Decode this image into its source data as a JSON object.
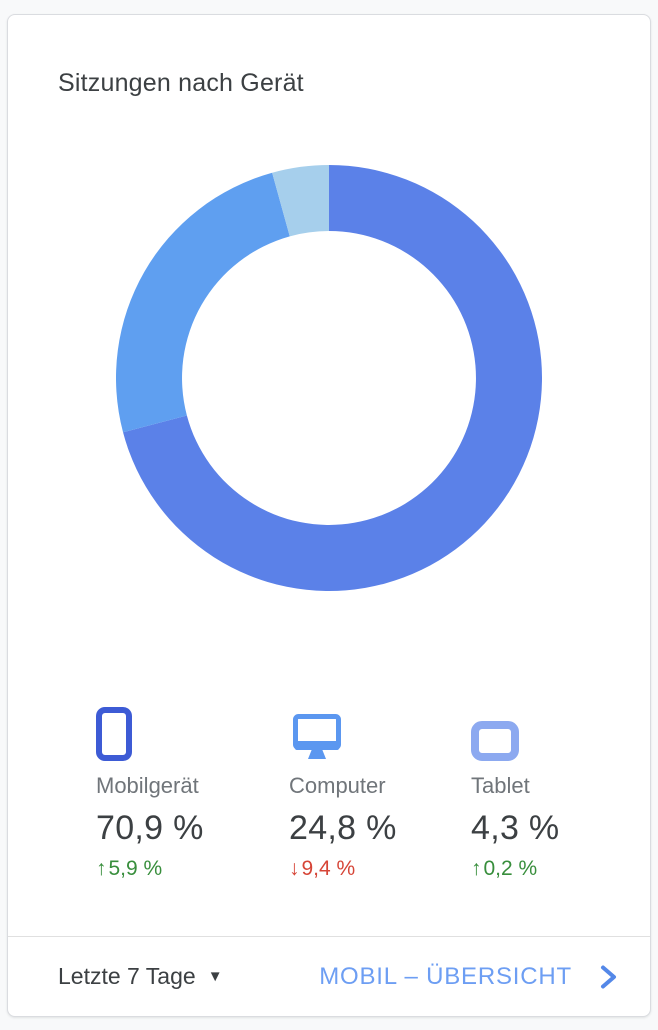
{
  "card": {
    "title": "Sitzungen nach Gerät"
  },
  "chart_data": {
    "type": "pie",
    "subtype": "donut",
    "title": "Sitzungen nach Gerät",
    "categories": [
      "Mobilgerät",
      "Computer",
      "Tablet"
    ],
    "values": [
      70.9,
      24.8,
      4.3
    ],
    "unit": "%",
    "colors": [
      "#5b81e8",
      "#5f9ff0",
      "#a6cfec"
    ],
    "start_angle_deg": 0,
    "direction": "clockwise",
    "inner_radius_ratio": 0.69,
    "legend_position": "bottom"
  },
  "legend": {
    "items": [
      {
        "icon": "smartphone-icon",
        "icon_color": "#3d5bd5",
        "label": "Mobilgerät",
        "value": "70,9 %",
        "arrow": "↑",
        "change": "5,9 %",
        "change_direction": "up",
        "change_color": "#388e3c"
      },
      {
        "icon": "desktop-icon",
        "icon_color": "#5b97f0",
        "label": "Computer",
        "value": "24,8 %",
        "arrow": "↓",
        "change": "9,4 %",
        "change_direction": "down",
        "change_color": "#d64537"
      },
      {
        "icon": "tablet-icon",
        "icon_color": "#8ca9f0",
        "label": "Tablet",
        "value": "4,3 %",
        "arrow": "↑",
        "change": "0,2 %",
        "change_direction": "up",
        "change_color": "#388e3c"
      }
    ]
  },
  "footer": {
    "date_range_label": "Letzte 7 Tage",
    "dropdown_caret": "▼",
    "link_label": "MOBIL – ÜBERSICHT",
    "link_color": "#6d9ef3",
    "chevron_color": "#5488e8"
  }
}
